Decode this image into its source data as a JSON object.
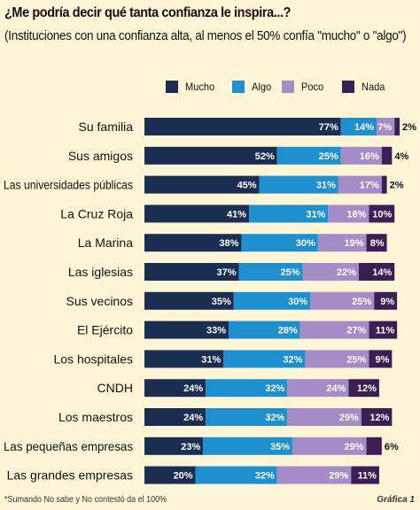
{
  "title": "¿Me podría decir qué tanta confianza le inspira...?",
  "subtitle": "(Instituciones con una confianza alta, al menos el 50% confía \"mucho\" o \"algo\")",
  "footnote": "*Sumando No sabe y No contestó da el 100%",
  "figure_label": "Gráfica 1",
  "colors": {
    "background": "#fdf5d6",
    "Mucho": "#1a2e52",
    "Algo": "#1f90cf",
    "Poco": "#a48cc7",
    "Nada": "#3b1e53"
  },
  "chart_data": {
    "type": "bar",
    "orientation": "horizontal",
    "stacked": true,
    "value_suffix": "%",
    "categories": [
      "Su familia",
      "Sus amigos",
      "Las universidades públicas",
      "La Cruz Roja",
      "La Marina",
      "Las iglesias",
      "Sus vecinos",
      "El Ejército",
      "Los hospitales",
      "CNDH",
      "Los maestros",
      "Las pequeñas empresas",
      "Las grandes empresas"
    ],
    "series": [
      {
        "name": "Mucho",
        "values": [
          77,
          52,
          45,
          41,
          38,
          37,
          35,
          33,
          31,
          24,
          24,
          23,
          20
        ]
      },
      {
        "name": "Algo",
        "values": [
          14,
          25,
          31,
          31,
          30,
          25,
          30,
          28,
          32,
          32,
          32,
          35,
          32
        ]
      },
      {
        "name": "Poco",
        "values": [
          7,
          16,
          17,
          16,
          19,
          22,
          25,
          27,
          25,
          24,
          29,
          29,
          29
        ]
      },
      {
        "name": "Nada",
        "values": [
          2,
          4,
          2,
          10,
          8,
          14,
          9,
          11,
          9,
          12,
          12,
          6,
          11
        ]
      }
    ],
    "legend_position": "top",
    "grid": false
  }
}
